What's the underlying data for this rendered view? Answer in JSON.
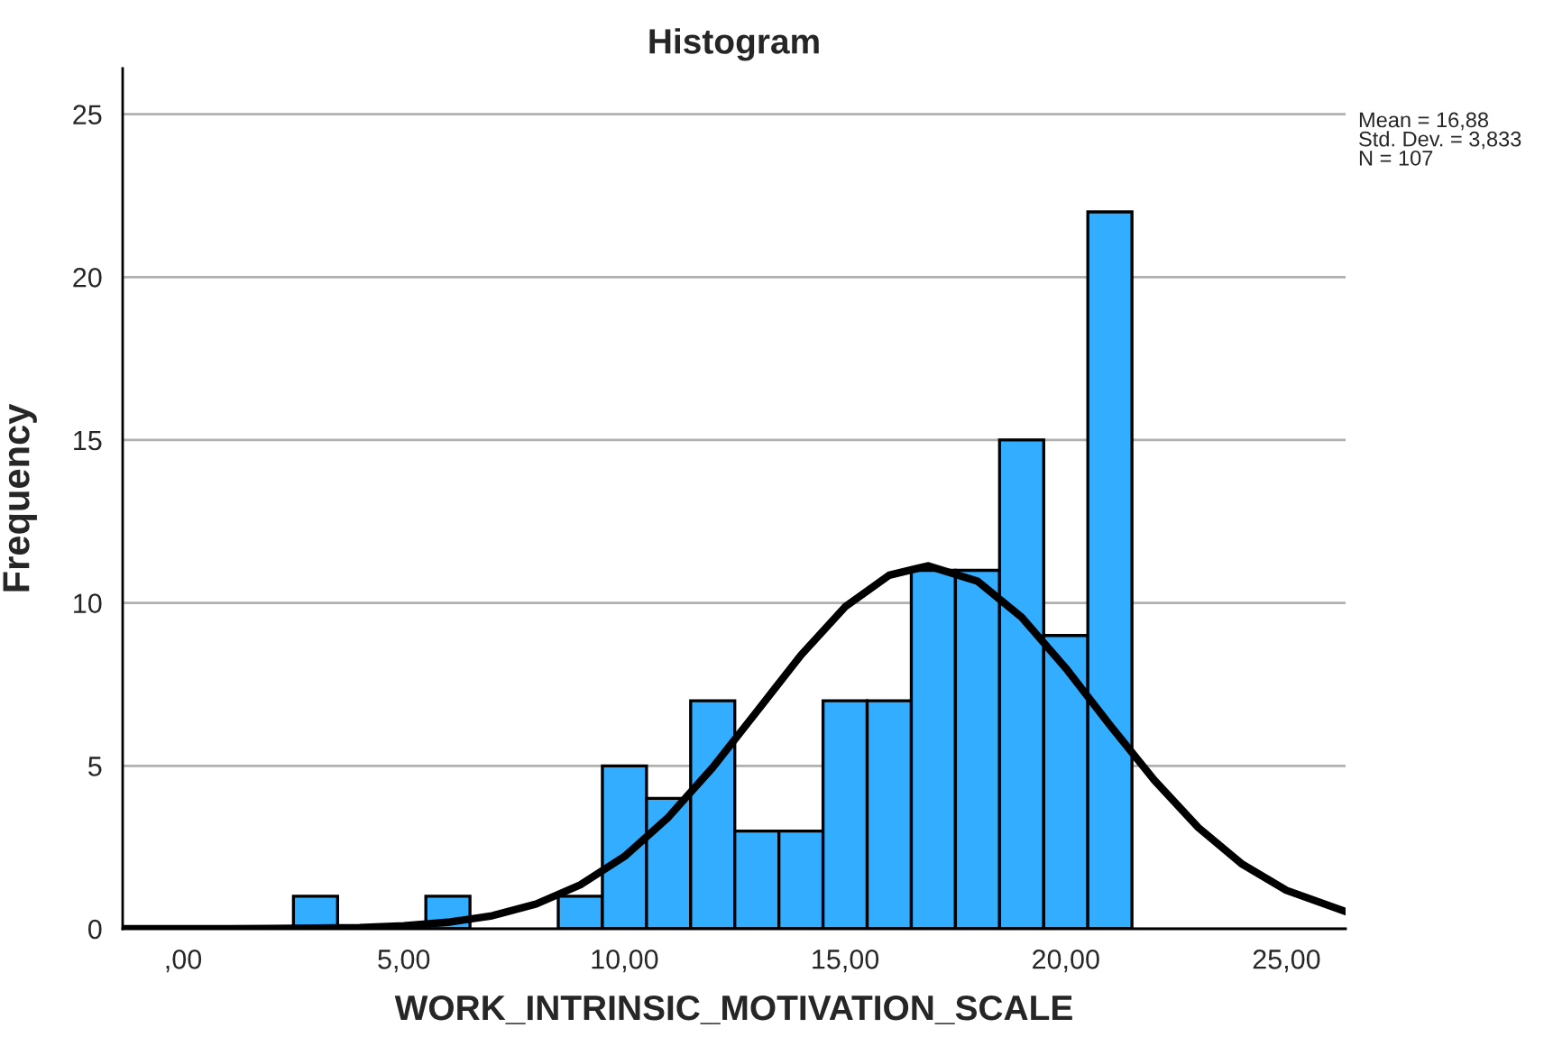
{
  "chart_data": {
    "type": "histogram",
    "title": "Histogram",
    "xlabel": "WORK_INTRINSIC_MOTIVATION_SCALE",
    "ylabel": "Frequency",
    "bins": [
      2.5,
      3.5,
      4.5,
      5.5,
      6.5,
      7.5,
      8.5,
      9.5,
      10.5,
      11.5,
      12.5,
      13.5,
      14.5,
      15.5,
      16.5,
      17.5,
      18.5,
      19.5,
      20.5,
      21.5
    ],
    "values": [
      1,
      0,
      0,
      1,
      0,
      0,
      1,
      5,
      4,
      7,
      3,
      3,
      7,
      7,
      11,
      11,
      15,
      9,
      22
    ],
    "color": "#33adff",
    "series": [
      {
        "type": "line",
        "color": "#000000",
        "x": [
          -1.37,
          0,
          2,
          3,
          4,
          5,
          6,
          7,
          8,
          9,
          10,
          11,
          12,
          13,
          14,
          15,
          16,
          16.88,
          18,
          19,
          20,
          21,
          22,
          23,
          24,
          25,
          26.34
        ],
        "values": [
          0,
          0,
          0.01,
          0.02,
          0.04,
          0.09,
          0.2,
          0.4,
          0.76,
          1.35,
          2.22,
          3.43,
          4.95,
          6.67,
          8.4,
          9.88,
          10.85,
          11.14,
          10.67,
          9.56,
          8.0,
          6.25,
          4.57,
          3.11,
          1.98,
          1.18,
          0.53
        ]
      }
    ],
    "xlim": [
      -1.37,
      26.34
    ],
    "xticks": [
      {
        "value": 0,
        "label": ",00"
      },
      {
        "value": 5,
        "label": "5,00"
      },
      {
        "value": 10,
        "label": "10,00"
      },
      {
        "value": 15,
        "label": "15,00"
      },
      {
        "value": 20,
        "label": "20,00"
      },
      {
        "value": 25,
        "label": "25,00"
      }
    ],
    "ylim": [
      0,
      26.4
    ],
    "yticks": [
      0,
      5,
      10,
      15,
      20,
      25
    ],
    "grid": "y",
    "legend": false,
    "annotations": [
      "Mean = 16,88\nStd. Dev. = 3,833\nN = 107"
    ]
  }
}
